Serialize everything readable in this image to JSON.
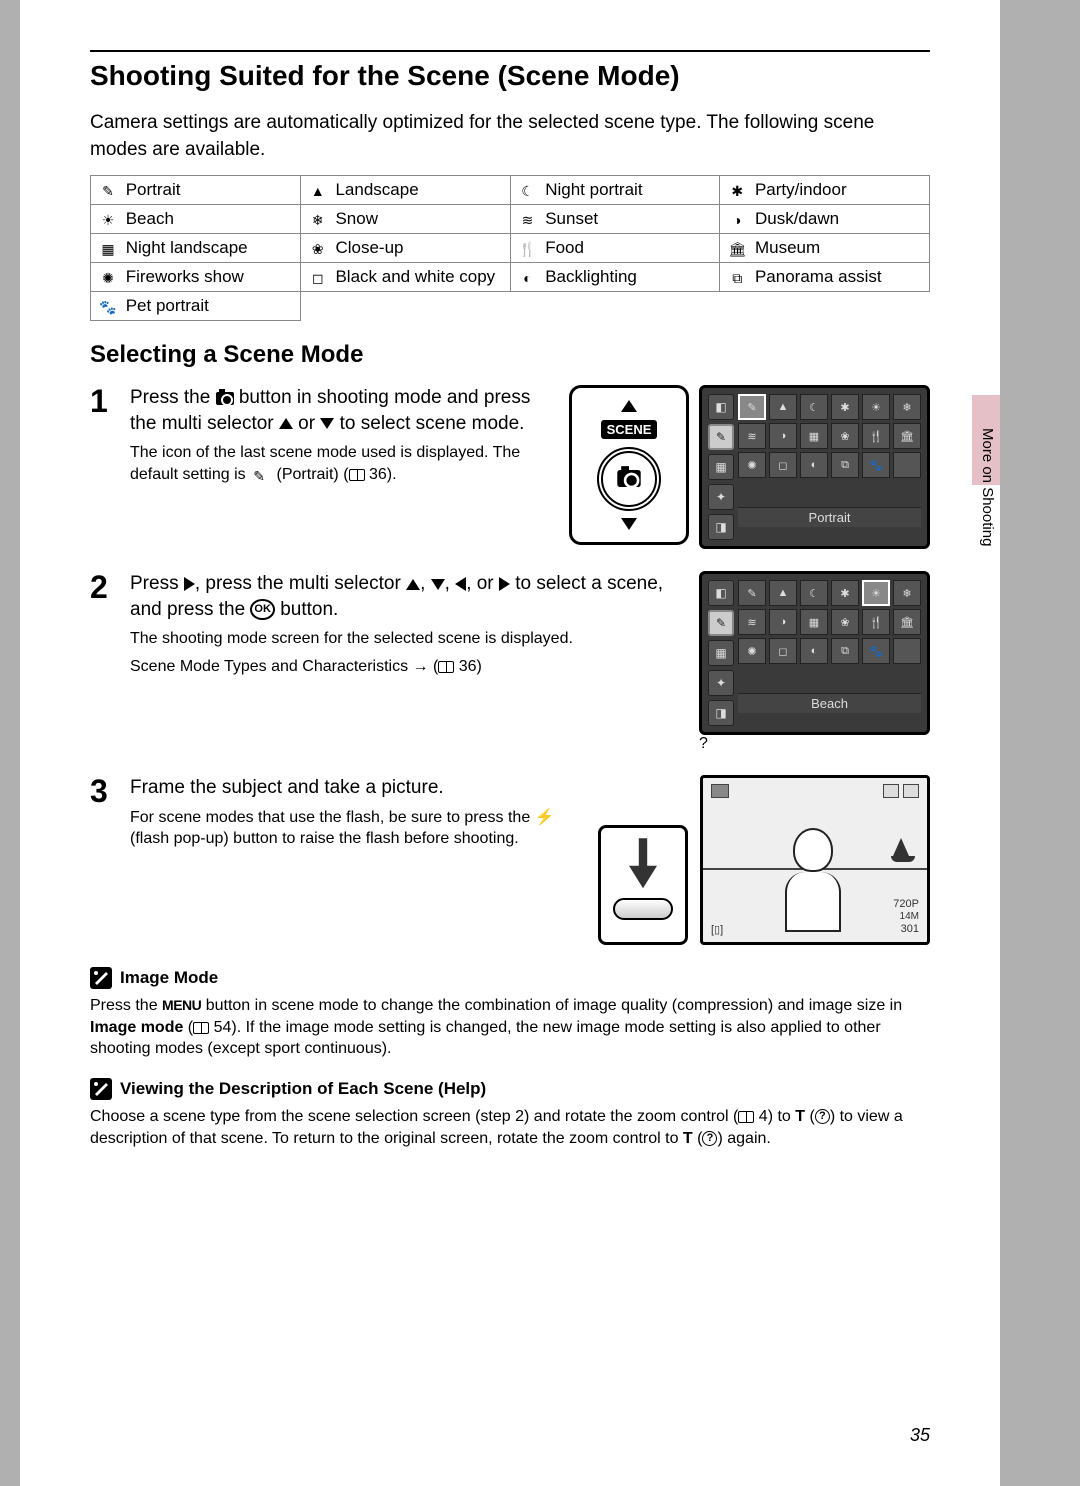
{
  "title": "Shooting Suited for the Scene (Scene Mode)",
  "intro": "Camera settings are automatically optimized for the selected scene type. The following scene modes are available.",
  "scene_table": {
    "rows": [
      [
        {
          "icon": "✎",
          "label": "Portrait"
        },
        {
          "icon": "▲",
          "label": "Landscape"
        },
        {
          "icon": "☾",
          "label": "Night portrait"
        },
        {
          "icon": "✱",
          "label": "Party/indoor"
        }
      ],
      [
        {
          "icon": "☀",
          "label": "Beach"
        },
        {
          "icon": "❄",
          "label": "Snow"
        },
        {
          "icon": "≋",
          "label": "Sunset"
        },
        {
          "icon": "◑",
          "label": "Dusk/dawn"
        }
      ],
      [
        {
          "icon": "▦",
          "label": "Night landscape"
        },
        {
          "icon": "❀",
          "label": "Close-up"
        },
        {
          "icon": "🍴",
          "label": "Food"
        },
        {
          "icon": "🏛",
          "label": "Museum"
        }
      ],
      [
        {
          "icon": "✺",
          "label": "Fireworks show"
        },
        {
          "icon": "◻",
          "label": "Black and white copy"
        },
        {
          "icon": "◐",
          "label": "Backlighting"
        },
        {
          "icon": "⧉",
          "label": "Panorama assist"
        }
      ],
      [
        {
          "icon": "🐾",
          "label": "Pet portrait"
        }
      ]
    ]
  },
  "subheading": "Selecting a Scene Mode",
  "step1": {
    "title_a": "Press the ",
    "title_b": " button in shooting mode and press the multi selector ",
    "title_c": " or ",
    "title_d": " to select scene mode.",
    "desc_a": "The icon of the last scene mode used is displayed. The default setting is ",
    "desc_b": " (Portrait) (",
    "desc_c": " 36).",
    "scene_badge": "SCENE",
    "lcd_caption": "Portrait"
  },
  "step2": {
    "title_a": "Press ",
    "title_b": ", press the multi selector ",
    "title_c": ", ",
    "title_d": ", ",
    "title_e": ", or ",
    "title_f": " to select a scene, and press the ",
    "title_g": " button.",
    "desc1": "The shooting mode screen for the selected scene is displayed.",
    "desc2_a": "Scene Mode Types and Characteristics → (",
    "desc2_b": " 36)",
    "lcd_caption": "Beach",
    "ok": "OK"
  },
  "step3": {
    "title": "Frame the subject and take a picture.",
    "desc_a": "For scene modes that use the flash, be sure to press the ",
    "desc_b": " (flash pop-up) button to raise the flash before shooting.",
    "frame_br1": "720P",
    "frame_br3": "301",
    "frame_bl": "[▯]"
  },
  "sub1": {
    "title": "Image Mode",
    "body_a": "Press the ",
    "menu": "MENU",
    "body_b": " button in scene mode to change the combination of image quality (compression) and image size in ",
    "bold": "Image mode",
    "body_c": " (",
    "body_d": " 54). If the image mode setting is changed, the new image mode setting is also applied to other shooting modes (except sport continuous)."
  },
  "sub2": {
    "title": "Viewing the Description of Each Scene (Help)",
    "body_a": "Choose a scene type from the scene selection screen (step 2) and rotate the zoom control (",
    "body_b": " 4) to ",
    "T": "T",
    "body_c": " (",
    "body_d": ") to view a description of that scene. To return to the original screen, rotate the zoom control to ",
    "body_e": " (",
    "body_f": ") again."
  },
  "page_num": "35",
  "side_label": "More on Shooting",
  "colors": {
    "page_bg": "#ffffff",
    "body_bg": "#b0b0b0",
    "accent_tab": "#e5c0c6",
    "lcd_bg": "#3a3a3a",
    "lcd_cell": "#555555",
    "border": "#000000"
  }
}
